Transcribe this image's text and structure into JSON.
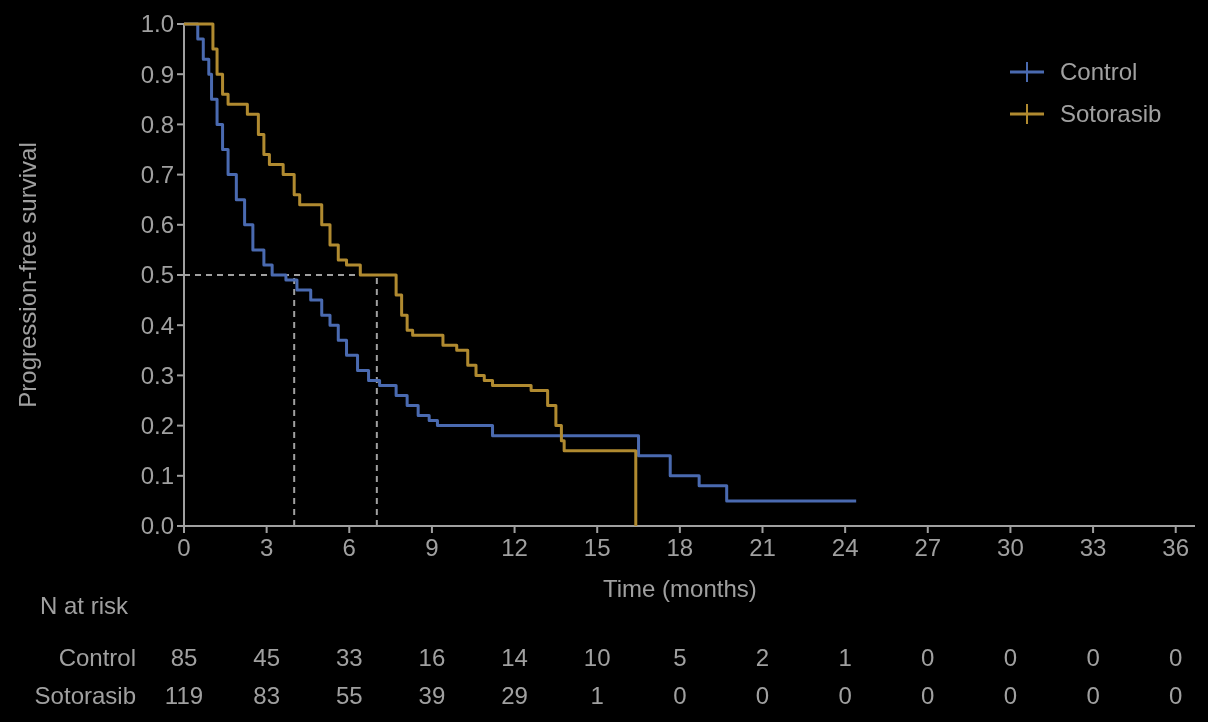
{
  "chart_data": {
    "type": "step",
    "xlabel": "Time (months)",
    "ylabel": "Progression-free survival",
    "xlim": [
      0,
      36.7
    ],
    "ylim": [
      0,
      1.0
    ],
    "xticks": [
      0,
      3,
      6,
      9,
      12,
      15,
      18,
      21,
      24,
      27,
      30,
      33,
      36
    ],
    "yticks": [
      {
        "value": 0,
        "label": "0.0"
      },
      {
        "value": 0.1,
        "label": "0.1"
      },
      {
        "value": 0.2,
        "label": "0.2"
      },
      {
        "value": 0.3,
        "label": "0.3"
      },
      {
        "value": 0.4,
        "label": "0.4"
      },
      {
        "value": 0.5,
        "label": "0.5"
      },
      {
        "value": 0.6,
        "label": "0.6"
      },
      {
        "value": 0.7,
        "label": "0.7"
      },
      {
        "value": 0.8,
        "label": "0.8"
      },
      {
        "value": 0.9,
        "label": "0.9"
      },
      {
        "value": 1.0,
        "label": "1.0"
      }
    ],
    "legend": "top right",
    "grid": false,
    "series": [
      {
        "name": "Control",
        "color": "#4a6ab0",
        "x": [
          0,
          0.5,
          0.7,
          0.9,
          1.0,
          1.2,
          1.4,
          1.6,
          1.9,
          2.2,
          2.5,
          2.9,
          3.2,
          3.7,
          4.1,
          4.6,
          5.0,
          5.3,
          5.6,
          5.9,
          6.3,
          6.7,
          7.1,
          7.7,
          8.1,
          8.5,
          8.9,
          9.2,
          11.2,
          12.0,
          16.5,
          17.65,
          18.7,
          19.7,
          24.4
        ],
        "values": [
          1.0,
          0.97,
          0.93,
          0.9,
          0.85,
          0.8,
          0.75,
          0.7,
          0.65,
          0.6,
          0.55,
          0.52,
          0.5,
          0.49,
          0.47,
          0.45,
          0.42,
          0.4,
          0.37,
          0.34,
          0.31,
          0.29,
          0.28,
          0.26,
          0.24,
          0.22,
          0.21,
          0.2,
          0.18,
          0.18,
          0.14,
          0.1,
          0.08,
          0.05,
          0.05
        ]
      },
      {
        "name": "Sotorasib",
        "color": "#b08a30",
        "x": [
          0,
          1.05,
          1.2,
          1.4,
          1.6,
          2.3,
          2.7,
          2.9,
          3.1,
          3.6,
          4.0,
          4.2,
          5.0,
          5.3,
          5.6,
          5.9,
          6.4,
          6.9,
          7.7,
          7.9,
          8.1,
          8.3,
          9.4,
          9.9,
          10.3,
          10.6,
          10.9,
          11.2,
          12.6,
          13.2,
          13.5,
          13.7,
          13.8,
          14.0,
          16.4
        ],
        "values": [
          1.0,
          0.95,
          0.9,
          0.86,
          0.84,
          0.82,
          0.78,
          0.74,
          0.72,
          0.7,
          0.66,
          0.64,
          0.6,
          0.56,
          0.53,
          0.52,
          0.5,
          0.5,
          0.46,
          0.42,
          0.39,
          0.38,
          0.36,
          0.35,
          0.32,
          0.3,
          0.29,
          0.28,
          0.27,
          0.24,
          0.2,
          0.17,
          0.15,
          0.15,
          0
        ]
      }
    ],
    "ref_lines": [
      {
        "axis": "y",
        "value": 0.5,
        "color": "#a0a0a0",
        "line_style": "dashed"
      },
      {
        "axis": "x",
        "value": 4.0,
        "color": "#a0a0a0",
        "line_style": "dashed"
      },
      {
        "axis": "x",
        "value": 7.0,
        "color": "#a0a0a0",
        "line_style": "dashed"
      }
    ],
    "annotations": [
      "N at risk",
      "Control 85 45 33 16 14 10 5 2 1 0 0 0 0",
      "Sotorasib 119 83 55 39 29 1 0 0 0 0 0 0 0"
    ]
  }
}
